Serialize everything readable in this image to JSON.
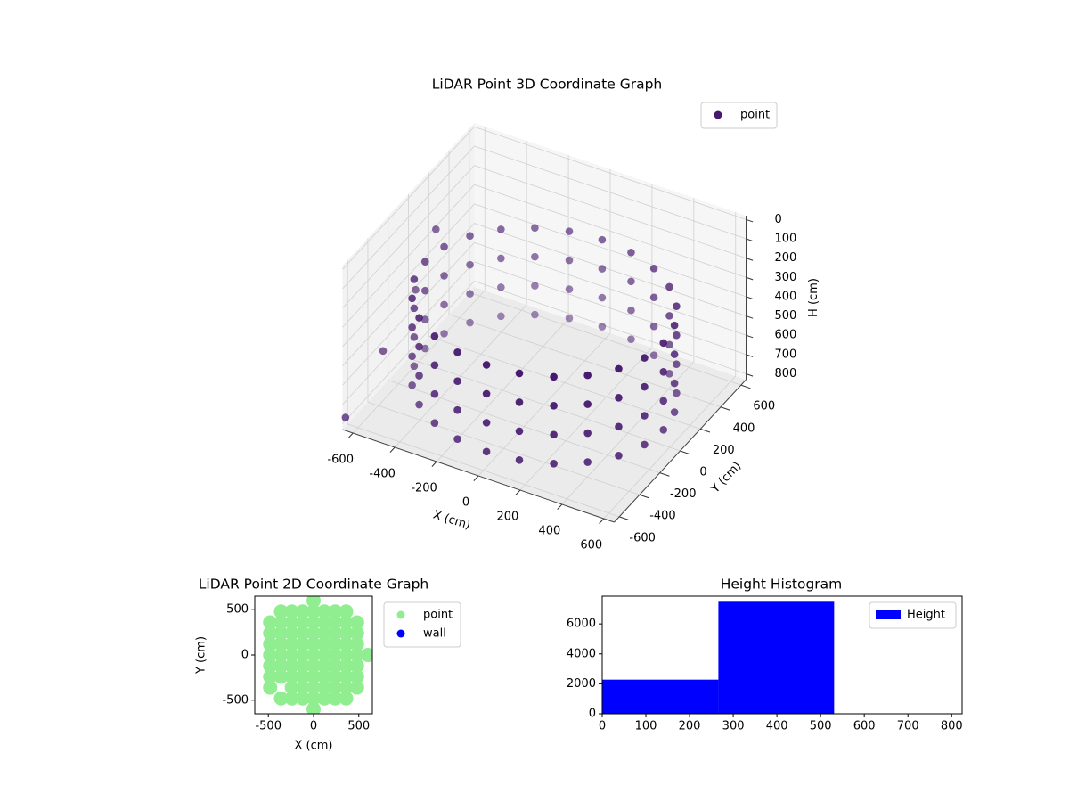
{
  "chart_data": [
    {
      "type": "scatter3d",
      "title": "LiDAR Point 3D Coordinate Graph",
      "xlabel": "X (cm)",
      "ylabel": "Y (cm)",
      "zlabel": "H (cm)",
      "xlim": [
        -650,
        650
      ],
      "ylim": [
        -650,
        650
      ],
      "zlim": [
        830,
        -20
      ],
      "xticks": [
        -600,
        -400,
        -200,
        0,
        200,
        400,
        600
      ],
      "yticks": [
        -600,
        -400,
        -200,
        0,
        200,
        400,
        600
      ],
      "zticks": [
        0,
        100,
        200,
        300,
        400,
        500,
        600,
        700,
        800
      ],
      "grid": true,
      "legend": "upper right",
      "series": [
        {
          "name": "point",
          "color": "#46186e",
          "x": [
            570,
            551,
            494,
            403,
            285,
            148,
            0,
            -148,
            -285,
            -403,
            -494,
            -551,
            -570,
            -551,
            -494,
            -403,
            -285,
            -148,
            0,
            148,
            285,
            403,
            494,
            551,
            570,
            551,
            494,
            403,
            285,
            148,
            0,
            -148,
            -285,
            -403,
            -494,
            -551,
            -570,
            -551,
            -494,
            -403,
            -285,
            -148,
            0,
            148,
            285,
            403,
            494,
            551,
            570,
            551,
            494,
            403,
            285,
            148,
            0,
            -148,
            -285,
            -403,
            -494,
            -551,
            -570,
            -551,
            -494,
            -403,
            -285,
            -148,
            0,
            148,
            285,
            403,
            494,
            551,
            570,
            551,
            494,
            403,
            285,
            148,
            0,
            -148,
            -285,
            -403,
            -494,
            -551,
            -570,
            -551,
            -494,
            -403,
            -285,
            -148,
            0,
            148,
            285,
            403,
            494,
            551,
            -640,
            -640,
            -650,
            -660
          ],
          "y": [
            0,
            148,
            285,
            403,
            494,
            551,
            570,
            551,
            494,
            403,
            285,
            148,
            0,
            -148,
            -285,
            -403,
            -494,
            -551,
            -570,
            -551,
            -494,
            -403,
            -285,
            -148,
            0,
            148,
            285,
            403,
            494,
            551,
            570,
            551,
            494,
            403,
            285,
            148,
            0,
            -148,
            -285,
            -403,
            -494,
            -551,
            -570,
            -551,
            -494,
            -403,
            -285,
            -148,
            0,
            148,
            285,
            403,
            494,
            551,
            570,
            551,
            494,
            403,
            285,
            148,
            0,
            -148,
            -285,
            -403,
            -494,
            -551,
            -570,
            -551,
            -494,
            -403,
            -285,
            -148,
            0,
            148,
            285,
            403,
            494,
            551,
            570,
            551,
            494,
            403,
            285,
            148,
            0,
            -148,
            -285,
            -403,
            -494,
            -551,
            -570,
            -551,
            -494,
            -403,
            -285,
            -148,
            250,
            50,
            -250,
            -600
          ],
          "z": [
            300,
            300,
            300,
            300,
            300,
            300,
            300,
            300,
            300,
            300,
            300,
            300,
            300,
            300,
            300,
            300,
            300,
            300,
            300,
            300,
            300,
            300,
            300,
            300,
            450,
            450,
            450,
            450,
            450,
            450,
            450,
            450,
            450,
            450,
            450,
            450,
            450,
            450,
            450,
            450,
            450,
            450,
            450,
            450,
            450,
            450,
            450,
            450,
            600,
            600,
            600,
            600,
            600,
            600,
            600,
            600,
            600,
            600,
            600,
            600,
            600,
            600,
            600,
            600,
            600,
            600,
            600,
            600,
            600,
            600,
            600,
            600,
            750,
            750,
            750,
            750,
            750,
            750,
            750,
            750,
            750,
            750,
            750,
            750,
            750,
            750,
            750,
            750,
            750,
            750,
            750,
            750,
            750,
            750,
            750,
            750,
            300,
            500,
            650,
            800
          ]
        }
      ]
    },
    {
      "type": "scatter",
      "title": "LiDAR Point 2D Coordinate Graph",
      "xlabel": "X (cm)",
      "ylabel": "Y (cm)",
      "xlim": [
        -650,
        650
      ],
      "ylim": [
        -650,
        650
      ],
      "xticks": [
        -500,
        0,
        500
      ],
      "yticks": [
        -500,
        0,
        500
      ],
      "legend": "outside upper right",
      "series": [
        {
          "name": "point",
          "color": "#90ee90",
          "x": [
            -480,
            -480,
            -480,
            -480,
            -480,
            -480,
            -480,
            -360,
            -360,
            -360,
            -360,
            -360,
            -360,
            -360,
            -360,
            -240,
            -240,
            -240,
            -240,
            -240,
            -240,
            -240,
            -240,
            -240,
            -120,
            -120,
            -120,
            -120,
            -120,
            -120,
            -120,
            -120,
            -120,
            0,
            0,
            0,
            0,
            0,
            0,
            0,
            0,
            0,
            0,
            0,
            120,
            120,
            120,
            120,
            120,
            120,
            120,
            120,
            120,
            240,
            240,
            240,
            240,
            240,
            240,
            240,
            240,
            240,
            360,
            360,
            360,
            360,
            360,
            360,
            360,
            360,
            360,
            480,
            480,
            480,
            480,
            480,
            480,
            480,
            600
          ],
          "y": [
            -360,
            -240,
            -120,
            0,
            120,
            240,
            360,
            -480,
            -240,
            -120,
            0,
            120,
            240,
            360,
            480,
            -480,
            -360,
            -240,
            -120,
            0,
            120,
            240,
            360,
            480,
            -480,
            -360,
            -240,
            -120,
            0,
            120,
            240,
            360,
            480,
            -600,
            -480,
            -360,
            -240,
            -120,
            0,
            120,
            240,
            360,
            480,
            600,
            -480,
            -360,
            -240,
            -120,
            0,
            120,
            240,
            360,
            480,
            -480,
            -360,
            -240,
            -120,
            0,
            120,
            240,
            360,
            480,
            -480,
            -360,
            -240,
            -120,
            0,
            120,
            240,
            360,
            480,
            -360,
            -240,
            -120,
            0,
            120,
            240,
            360,
            0
          ]
        },
        {
          "name": "wall",
          "color": "#0000ff",
          "x": [],
          "y": []
        }
      ]
    },
    {
      "type": "histogram",
      "title": "Height Histogram",
      "bins": [
        0,
        266,
        531,
        797
      ],
      "xlim": [
        0,
        824
      ],
      "ylim": [
        0,
        7854
      ],
      "xticks": [
        0,
        100,
        200,
        300,
        400,
        500,
        600,
        700,
        800
      ],
      "yticks": [
        0,
        2000,
        4000,
        6000
      ],
      "legend": "upper right",
      "series": [
        {
          "name": "Height",
          "color": "#0000ff",
          "values": [
            2280,
            7480,
            15
          ]
        }
      ]
    }
  ]
}
